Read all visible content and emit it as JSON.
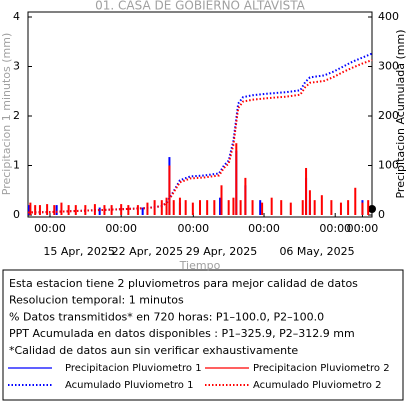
{
  "chart_data": {
    "type": "bar_line",
    "title": "01. CASA DE GOBIERNO ALTAVISTA",
    "xlabel": "Tiempo",
    "ylabel": "Precipitacion 1 minutos (mm)",
    "y2label": "Precipitacion Acumulada (mm)",
    "xlim": [
      0,
      720
    ],
    "xticks": [
      {
        "value": 46,
        "label": "00:00"
      },
      {
        "value": 195,
        "label": "00:00"
      },
      {
        "value": 346,
        "label": "00:00"
      },
      {
        "value": 494,
        "label": "00:00"
      },
      {
        "value": 643,
        "label": "00:00"
      },
      {
        "value": 700,
        "label": "00:00"
      }
    ],
    "xdate_labels": [
      {
        "value": 107,
        "label": "15 Apr, 2025"
      },
      {
        "value": 250,
        "label": "22 Apr, 2025"
      },
      {
        "value": 405,
        "label": "29 Apr, 2025"
      },
      {
        "value": 605,
        "label": "06 May, 2025"
      }
    ],
    "ylim": [
      0,
      4
    ],
    "yticks": [
      0,
      1,
      2,
      3,
      4
    ],
    "y2lim": [
      0,
      400
    ],
    "y2ticks": [
      0,
      100,
      200,
      300,
      400
    ],
    "notes": [
      "Esta estacion tiene 2 pluviometros para mejor calidad de datos",
      "Resolucion temporal: 1 minutos",
      "% Datos transmitidos* en 720 horas: P1–100.0, P2–100.0",
      "PPT Acumulada en datos disponibles : P1–325.9, P2–312.9 mm",
      "*Calidad de datos aun sin verificar exhaustivamente"
    ],
    "series": [
      {
        "name": "Precipitacion Pluviometro 1",
        "color": "#0000ff",
        "type": "bar",
        "x": [
          2,
          60,
          150,
          240,
          296,
          318,
          402,
          436,
          455,
          486,
          582,
          590,
          700
        ],
        "values": [
          0.2,
          0.2,
          0.15,
          0.15,
          1.17,
          0.25,
          0.35,
          1.3,
          0.6,
          0.3,
          0.75,
          0.3,
          0.3
        ]
      },
      {
        "name": "Precipitacion Pluviometro 2",
        "color": "#ff0000",
        "type": "bar",
        "x": [
          5,
          15,
          25,
          40,
          55,
          70,
          85,
          100,
          120,
          140,
          160,
          175,
          195,
          210,
          230,
          250,
          265,
          280,
          290,
          296,
          305,
          318,
          330,
          345,
          360,
          375,
          390,
          405,
          420,
          430,
          436,
          445,
          455,
          470,
          490,
          510,
          530,
          550,
          575,
          582,
          590,
          600,
          615,
          635,
          655,
          670,
          685,
          700,
          712
        ],
        "values": [
          0.25,
          0.2,
          0.2,
          0.22,
          0.2,
          0.25,
          0.2,
          0.2,
          0.2,
          0.22,
          0.2,
          0.2,
          0.22,
          0.2,
          0.2,
          0.25,
          0.3,
          0.3,
          0.35,
          1.0,
          0.3,
          0.35,
          0.3,
          0.25,
          0.3,
          0.3,
          0.3,
          0.6,
          0.3,
          0.35,
          1.45,
          0.3,
          0.75,
          0.3,
          0.25,
          0.35,
          0.3,
          0.25,
          0.3,
          0.95,
          0.5,
          0.3,
          0.4,
          0.3,
          0.25,
          0.3,
          0.55,
          0.25,
          0.3
        ]
      },
      {
        "name": "Acumulado Pluviometro 1",
        "color": "#0000ff",
        "type": "line",
        "axis": "y2",
        "x": [
          0,
          50,
          100,
          150,
          200,
          250,
          280,
          290,
          300,
          305,
          318,
          340,
          370,
          400,
          410,
          420,
          430,
          436,
          440,
          450,
          470,
          500,
          540,
          570,
          580,
          590,
          620,
          640,
          660,
          680,
          700,
          720
        ],
        "values": [
          5,
          6,
          8,
          10,
          12,
          14,
          18,
          25,
          40,
          48,
          70,
          78,
          80,
          84,
          100,
          110,
          150,
          195,
          225,
          238,
          242,
          245,
          248,
          252,
          268,
          278,
          282,
          290,
          300,
          310,
          318,
          326
        ]
      },
      {
        "name": "Acumulado Pluviometro 2",
        "color": "#ff0000",
        "type": "line",
        "axis": "y2",
        "x": [
          0,
          50,
          100,
          150,
          200,
          250,
          280,
          290,
          300,
          305,
          318,
          340,
          370,
          400,
          410,
          420,
          430,
          436,
          440,
          450,
          470,
          500,
          540,
          570,
          580,
          590,
          620,
          640,
          660,
          680,
          700,
          720
        ],
        "values": [
          5,
          6,
          8,
          10,
          12,
          14,
          18,
          24,
          38,
          46,
          66,
          74,
          76,
          80,
          95,
          104,
          142,
          187,
          216,
          229,
          233,
          236,
          239,
          243,
          258,
          267,
          271,
          279,
          289,
          298,
          306,
          313
        ]
      }
    ]
  }
}
